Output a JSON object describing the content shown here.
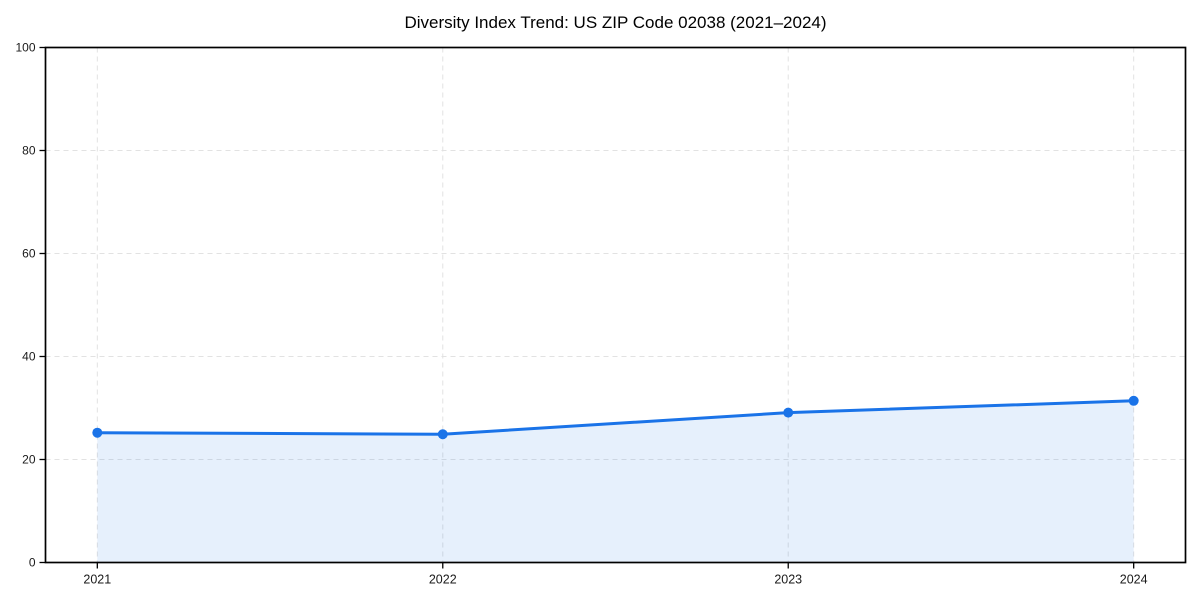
{
  "chart_data": {
    "type": "area",
    "title": "Diversity Index Trend: US ZIP Code 02038 (2021–2024)",
    "series_name": "Diversity Index",
    "x": [
      2021,
      2022,
      2023,
      2024
    ],
    "values": [
      25.2,
      24.9,
      29.1,
      31.4
    ],
    "xlabel": "",
    "ylabel": "",
    "ylim": [
      0,
      100
    ],
    "yticks": [
      0,
      20,
      40,
      60,
      80,
      100
    ],
    "xticks": [
      2021,
      2022,
      2023,
      2024
    ],
    "xtick_labels": [
      "2021",
      "2022",
      "2023",
      "2024"
    ],
    "ytick_labels": [
      "0",
      "20",
      "40",
      "60",
      "80",
      "100"
    ],
    "grid": true,
    "grid_style": "dashed",
    "legend_position": "none",
    "colors": {
      "line": "#1a73e8",
      "marker": "#1a73e8",
      "fill": "rgba(26,115,232,0.11)",
      "grid": "#e2e2e2",
      "axis": "#000000",
      "tick_label": "#1a1a1a",
      "title": "#000000",
      "background": "#ffffff"
    }
  }
}
